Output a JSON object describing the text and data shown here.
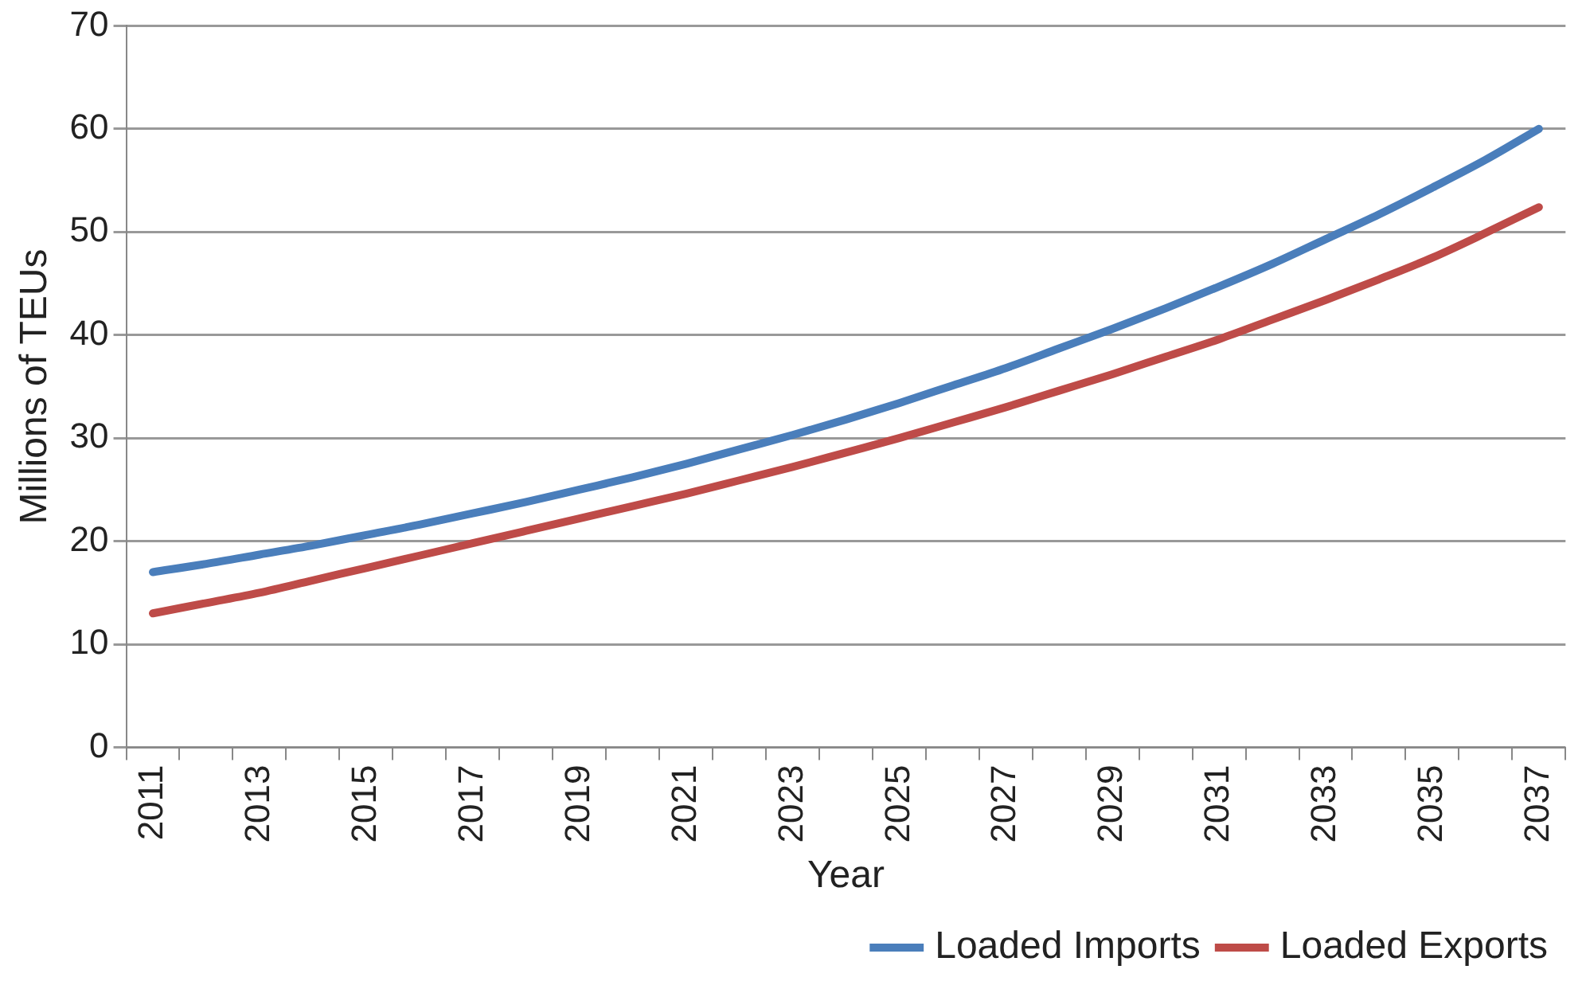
{
  "chart_data": {
    "type": "line",
    "xlabel": "Year",
    "ylabel": "Millions of TEUs",
    "categories": [
      "2011",
      null,
      "2013",
      null,
      "2015",
      null,
      "2017",
      null,
      "2019",
      null,
      "2021",
      null,
      "2023",
      null,
      "2025",
      null,
      "2027",
      null,
      "2029",
      null,
      "2031",
      null,
      "2033",
      null,
      "2035",
      null,
      "2037"
    ],
    "series": [
      {
        "name": "Loaded Imports",
        "color": "#4a7ebb",
        "values": [
          17,
          17.8,
          18.7,
          19.6,
          20.6,
          21.6,
          22.7,
          23.8,
          25,
          26.2,
          27.5,
          28.9,
          30.3,
          31.8,
          33.4,
          35.1,
          36.8,
          38.7,
          40.6,
          42.6,
          44.7,
          46.9,
          49.3,
          51.7,
          54.3,
          57,
          60
        ]
      },
      {
        "name": "Loaded Exports",
        "color": "#be4b48",
        "values": [
          13,
          14,
          15,
          16.2,
          17.4,
          18.6,
          19.8,
          21,
          22.2,
          23.4,
          24.6,
          25.9,
          27.2,
          28.6,
          30,
          31.5,
          33,
          34.6,
          36.2,
          37.9,
          39.6,
          41.5,
          43.4,
          45.4,
          47.5,
          49.9,
          52.4
        ]
      }
    ],
    "ylim": [
      0,
      70
    ],
    "yticks": [
      0,
      10,
      20,
      30,
      40,
      50,
      60,
      70
    ],
    "grid": "y",
    "legend": "bottom",
    "marker": "none",
    "line_style": "solid"
  }
}
